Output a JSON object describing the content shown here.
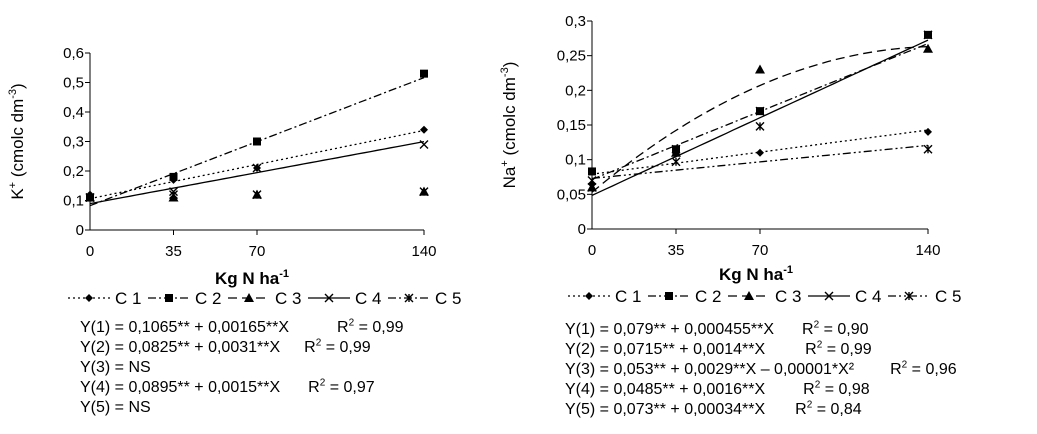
{
  "chart_data": [
    {
      "type": "scatter",
      "ylabel_main": "K",
      "ylabel_sup": "+",
      "ylabel_paren": " (cmolc dm",
      "ylabel_exp": "-3",
      "ylabel_close": ")",
      "xlabel_main": "Kg N ha",
      "xlabel_exp": "-1",
      "x_ticks": [
        0,
        35,
        70,
        140
      ],
      "x_tick_labels": [
        "0",
        "35",
        "70",
        "140"
      ],
      "ylim": [
        0,
        0.6
      ],
      "y_ticks": [
        "0",
        "0,1",
        "0,2",
        "0,3",
        "0,4",
        "0,5",
        "0,6"
      ],
      "legend_labels": [
        "C 1",
        "C 2",
        "C 3",
        "C 4",
        "C 5"
      ],
      "series": [
        {
          "name": "C 1",
          "marker": "diamond",
          "line": "dotted",
          "x": [
            0,
            35,
            70,
            140
          ],
          "y": [
            0.12,
            0.17,
            0.21,
            0.34
          ],
          "fit": [
            0.1065,
            0.00165,
            0
          ]
        },
        {
          "name": "C 2",
          "marker": "square",
          "line": "dashdot",
          "x": [
            0,
            35,
            70,
            140
          ],
          "y": [
            0.11,
            0.18,
            0.3,
            0.53
          ],
          "fit": [
            0.0825,
            0.0031,
            0
          ]
        },
        {
          "name": "C 3",
          "marker": "triangle",
          "line": "none",
          "x": [
            0,
            35,
            70,
            140
          ],
          "y": [
            0.11,
            0.11,
            0.12,
            0.13
          ],
          "fit": null
        },
        {
          "name": "C 4",
          "marker": "x",
          "line": "solid",
          "x": [
            0,
            35,
            70,
            140
          ],
          "y": [
            0.11,
            0.13,
            0.21,
            0.29
          ],
          "fit": [
            0.0895,
            0.0015,
            0
          ]
        },
        {
          "name": "C 5",
          "marker": "xstar",
          "line": "none",
          "x": [
            0,
            35,
            70,
            140
          ],
          "y": [
            0.11,
            0.12,
            0.12,
            0.13
          ],
          "fit": null
        }
      ],
      "equations": [
        {
          "text": "Y(1) = 0,1065** + 0,00165**X",
          "r2": "= 0,99"
        },
        {
          "text": "Y(2) = 0,0825** + 0,0031**X",
          "r2": "= 0,99"
        },
        {
          "text": "Y(3) = NS",
          "r2": ""
        },
        {
          "text": "Y(4) = 0,0895** + 0,0015**X",
          "r2": "= 0,97"
        },
        {
          "text": "Y(5) = NS",
          "r2": ""
        }
      ]
    },
    {
      "type": "scatter",
      "ylabel_main": "Na",
      "ylabel_sup": "+",
      "ylabel_paren": " (cmolc dm",
      "ylabel_exp": "-3",
      "ylabel_close": ")",
      "xlabel_main": "Kg N ha",
      "xlabel_exp": "-1",
      "x_ticks": [
        0,
        35,
        70,
        140
      ],
      "x_tick_labels": [
        "0",
        "35",
        "70",
        "140"
      ],
      "ylim": [
        0,
        0.3
      ],
      "y_ticks": [
        "0",
        "0,05",
        "0,1",
        "0,15",
        "0,2",
        "0,25",
        "0,3"
      ],
      "legend_labels": [
        "C 1",
        "C 2",
        "C 3",
        "C 4",
        "C 5"
      ],
      "series": [
        {
          "name": "C 1",
          "marker": "diamond",
          "line": "dotted",
          "x": [
            0,
            35,
            70,
            140
          ],
          "y": [
            0.065,
            0.11,
            0.11,
            0.14
          ],
          "fit": [
            0.079,
            0.000455,
            0
          ]
        },
        {
          "name": "C 2",
          "marker": "square",
          "line": "dashdot",
          "x": [
            0,
            35,
            70,
            140
          ],
          "y": [
            0.083,
            0.115,
            0.17,
            0.28
          ],
          "fit": [
            0.0715,
            0.0014,
            0
          ]
        },
        {
          "name": "C 3",
          "marker": "triangle",
          "line": "dashed",
          "x": [
            0,
            35,
            70,
            140
          ],
          "y": [
            0.06,
            0.11,
            0.23,
            0.26
          ],
          "fit": [
            0.053,
            0.0029,
            -1e-05
          ]
        },
        {
          "name": "C 4",
          "marker": "x",
          "line": "solid",
          "x": [
            0,
            35,
            70,
            140
          ],
          "y": [
            0.07,
            0.115,
            0.17,
            0.28
          ],
          "fit": [
            0.0485,
            0.0016,
            0
          ]
        },
        {
          "name": "C 5",
          "marker": "xstar",
          "line": "dashdotdot",
          "x": [
            0,
            35,
            70,
            140
          ],
          "y": [
            0.06,
            0.097,
            0.148,
            0.115
          ],
          "fit": [
            0.073,
            0.00034,
            0
          ]
        }
      ],
      "equations": [
        {
          "text": "Y(1) = 0,079** + 0,000455**X",
          "r2": "= 0,90"
        },
        {
          "text": "Y(2) = 0,0715** + 0,0014**X",
          "r2": "= 0,99"
        },
        {
          "text": "Y(3) = 0,053** + 0,0029**X – 0,00001*X²",
          "r2": "= 0,96"
        },
        {
          "text": "Y(4) = 0,0485** + 0,0016**X",
          "r2": "= 0,98"
        },
        {
          "text": "Y(5) = 0,073** + 0,00034**X",
          "r2": "= 0,84"
        }
      ]
    }
  ]
}
